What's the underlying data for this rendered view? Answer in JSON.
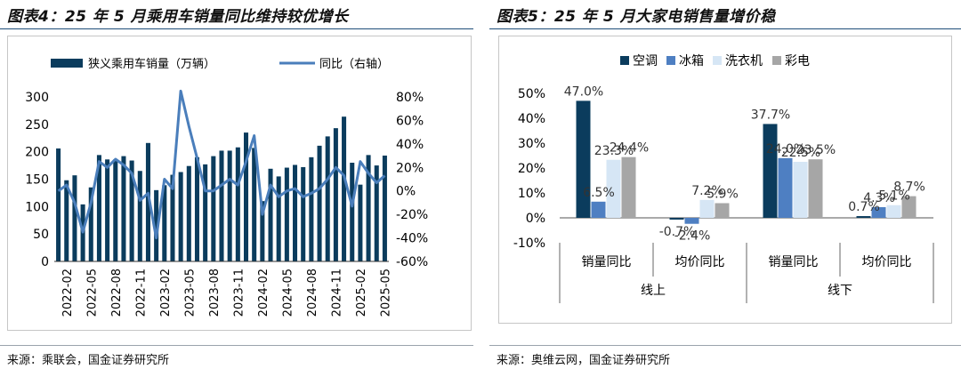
{
  "left": {
    "title": "图表4：25 年 5 月乘用车销量同比维持较优增长",
    "source": "来源：乘联会，国金证券研究所"
  },
  "right": {
    "title": "图表5：25 年 5 月大家电销售量增价稳",
    "source": "来源：奥维云网，国金证券研究所"
  },
  "colors": {
    "bar_navy": "#0b3c5d",
    "line_blue": "#4a7ebb",
    "fridge_blue": "#4e7fc2",
    "washer_lightblue": "#d6e6f5",
    "tv_gray": "#a6a6a6",
    "title_rule": "#1f4e79"
  },
  "chart_data": [
    {
      "type": "bar",
      "combo": "bar+line",
      "legend_position": "top",
      "categories": [
        "2022-01",
        "2022-02",
        "2022-03",
        "2022-04",
        "2022-05",
        "2022-06",
        "2022-07",
        "2022-08",
        "2022-09",
        "2022-10",
        "2022-11",
        "2022-12",
        "2023-01",
        "2023-02",
        "2023-03",
        "2023-04",
        "2023-05",
        "2023-06",
        "2023-07",
        "2023-08",
        "2023-09",
        "2023-10",
        "2023-11",
        "2023-12",
        "2024-01",
        "2024-02",
        "2024-03",
        "2024-04",
        "2024-05",
        "2024-06",
        "2024-07",
        "2024-08",
        "2024-09",
        "2024-10",
        "2024-11",
        "2024-12",
        "2025-01",
        "2025-02",
        "2025-03",
        "2025-04",
        "2025-05"
      ],
      "tick_labels": [
        "2022-02",
        "2022-05",
        "2022-08",
        "2022-11",
        "2023-02",
        "2023-05",
        "2023-08",
        "2023-11",
        "2024-02",
        "2024-05",
        "2024-08",
        "2024-11",
        "2025-02",
        "2025-05"
      ],
      "series": [
        {
          "name": "狭义乘用车销量（万辆）",
          "axis": "left",
          "kind": "bar",
          "values": [
            206,
            148,
            157,
            104,
            135,
            194,
            186,
            186,
            192,
            184,
            165,
            216,
            130,
            139,
            158,
            163,
            174,
            190,
            177,
            192,
            202,
            202,
            208,
            235,
            207,
            110,
            169,
            155,
            171,
            176,
            172,
            190,
            211,
            228,
            243,
            264,
            180,
            140,
            194,
            175,
            193
          ]
        },
        {
          "name": "同比（右轴）",
          "axis": "right",
          "kind": "line",
          "values": [
            0,
            5,
            -10,
            -35,
            -10,
            25,
            20,
            27,
            22,
            15,
            -8,
            -2,
            -40,
            10,
            2,
            85,
            55,
            28,
            0,
            0,
            5,
            10,
            5,
            25,
            47,
            -20,
            5,
            -5,
            0,
            2,
            -5,
            -2,
            2,
            10,
            20,
            13,
            -13,
            25,
            15,
            7,
            13
          ]
        }
      ],
      "y_left": {
        "ticks": [
          "0",
          "50",
          "100",
          "150",
          "200",
          "250",
          "300"
        ],
        "ylim": [
          0,
          300
        ]
      },
      "y_right": {
        "ticks": [
          "80%",
          "60%",
          "40%",
          "20%",
          "0%",
          "-20%",
          "-40%",
          "-60%"
        ],
        "ylim": [
          -60,
          80
        ]
      }
    },
    {
      "type": "bar",
      "legend_position": "top",
      "groups": [
        "销量同比",
        "均价同比",
        "销量同比",
        "均价同比"
      ],
      "channels": [
        "线上",
        "线下"
      ],
      "series": [
        {
          "name": "空调",
          "values": [
            47.0,
            -0.7,
            37.7,
            0.7
          ]
        },
        {
          "name": "冰箱",
          "values": [
            6.5,
            -2.4,
            24.0,
            4.3
          ]
        },
        {
          "name": "洗衣机",
          "values": [
            23.3,
            7.2,
            22.5,
            5.1
          ]
        },
        {
          "name": "彩电",
          "values": [
            24.4,
            5.9,
            23.5,
            8.7
          ]
        }
      ],
      "data_labels": [
        [
          "47.0%",
          "-0.7%",
          "37.7%",
          "0.7%"
        ],
        [
          "6.5%",
          "-2.4%",
          "24.0%",
          "4.3%"
        ],
        [
          "23.3%",
          "7.2%",
          "22.5%",
          "5.1%"
        ],
        [
          "24.4%",
          "5.9%",
          "23.5%",
          "8.7%"
        ]
      ],
      "y_ticks": [
        "50%",
        "40%",
        "30%",
        "20%",
        "10%",
        "0%",
        "-10%"
      ],
      "ylim": [
        -10,
        50
      ]
    }
  ]
}
